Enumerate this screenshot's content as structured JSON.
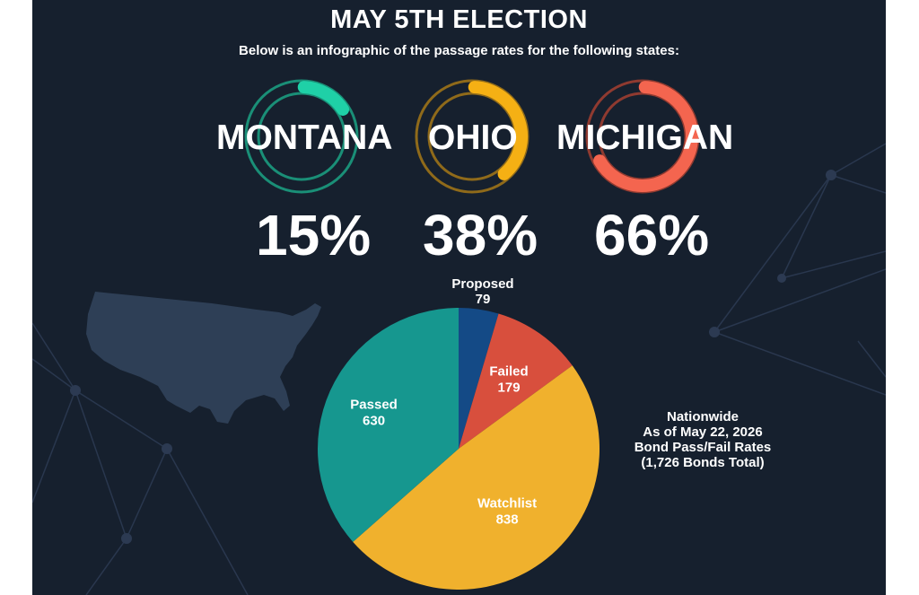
{
  "header": {
    "title": "MAY 5TH ELECTION",
    "subtitle": "Below is an infographic of the passage rates for the following states:"
  },
  "states": [
    {
      "name": "MONTANA",
      "percent_label": "15%",
      "rate": 0.15,
      "color": "#1fd0a7"
    },
    {
      "name": "OHIO",
      "percent_label": "38%",
      "rate": 0.38,
      "color": "#f5b014"
    },
    {
      "name": "MICHIGAN",
      "percent_label": "66%",
      "rate": 0.66,
      "color": "#f4654f"
    }
  ],
  "side_note": {
    "line1": "Nationwide",
    "line2": "As of May 22, 2026",
    "line3": "Bond Pass/Fail Rates",
    "line4": "(1,726 Bonds Total)"
  },
  "chart_data": {
    "type": "pie",
    "total": 1726,
    "slices": [
      {
        "label": "Proposed",
        "value": 79,
        "color": "#144a86"
      },
      {
        "label": "Failed",
        "value": 179,
        "color": "#d84f3d"
      },
      {
        "label": "Watchlist",
        "value": 838,
        "color": "#f0b12d"
      },
      {
        "label": "Passed",
        "value": 630,
        "color": "#16978f"
      }
    ]
  }
}
